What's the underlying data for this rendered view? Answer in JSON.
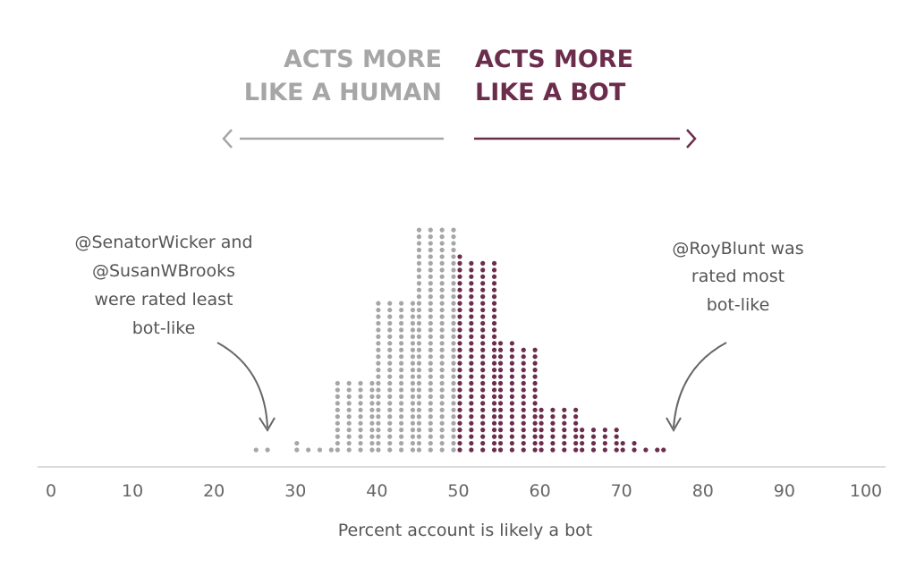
{
  "chart_data": {
    "type": "scatter",
    "chart_style": "dot histogram",
    "header_human": [
      "ACTS MORE",
      "LIKE A HUMAN"
    ],
    "header_bot": [
      "ACTS MORE",
      "LIKE A BOT"
    ],
    "xlabel": "Percent account is likely a bot",
    "xlim": [
      0,
      100
    ],
    "ticks": [
      0,
      10,
      20,
      30,
      40,
      50,
      60,
      70,
      80,
      90,
      100
    ],
    "grid": false,
    "columns": [
      {
        "bin_start": 25,
        "heights": [
          1,
          1,
          0,
          0
        ]
      },
      {
        "bin_start": 30,
        "heights": [
          2,
          1,
          1,
          1
        ]
      },
      {
        "bin_start": 35,
        "heights": [
          11,
          11,
          11,
          11
        ]
      },
      {
        "bin_start": 40,
        "heights": [
          23,
          23,
          23,
          23
        ]
      },
      {
        "bin_start": 45,
        "heights": [
          34,
          34,
          34,
          34
        ]
      },
      {
        "bin_start": 50,
        "heights": [
          30,
          29,
          29,
          29
        ]
      },
      {
        "bin_start": 55,
        "heights": [
          17,
          17,
          16,
          16
        ]
      },
      {
        "bin_start": 60,
        "heights": [
          7,
          7,
          7,
          7
        ]
      },
      {
        "bin_start": 65,
        "heights": [
          4,
          4,
          4,
          4
        ]
      },
      {
        "bin_start": 70,
        "heights": [
          2,
          2,
          1,
          1
        ]
      },
      {
        "bin_start": 75,
        "heights": [
          1,
          0,
          0,
          0
        ]
      }
    ],
    "colors": {
      "human": "#a6a6a6",
      "bot": "#6b2d4c",
      "axis": "#cfcfcf"
    },
    "annotations": [
      {
        "lines": [
          "@SenatorWicker and",
          "@SusanWBrooks",
          "were rated least",
          "bot-like"
        ],
        "points_to": 26
      },
      {
        "lines": [
          "@RoyBlunt was",
          "rated most",
          "bot-like"
        ],
        "points_to": 76
      }
    ]
  }
}
